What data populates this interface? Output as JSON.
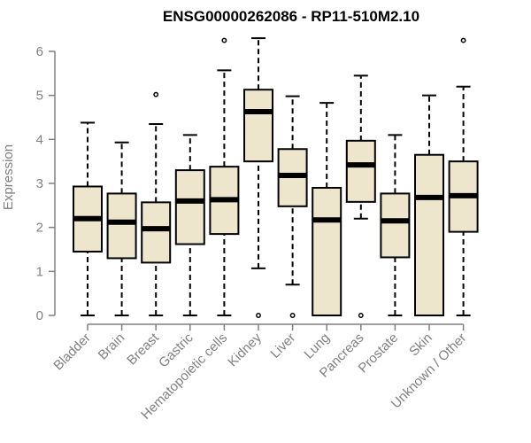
{
  "chart_data": {
    "type": "box",
    "title": "ENSG00000262086 - RP11-510M2.10",
    "xlabel": "",
    "ylabel": "Expression",
    "ylim": [
      0,
      6.3
    ],
    "yticks": [
      0,
      1,
      2,
      3,
      4,
      5,
      6
    ],
    "colors": {
      "box_fill": "#ede6cd",
      "stroke": "#000000",
      "axis": "#808080"
    },
    "categories": [
      "Bladder",
      "Brain",
      "Breast",
      "Gastric",
      "Hematopoietic cells",
      "Kidney",
      "Liver",
      "Lung",
      "Pancreas",
      "Prostate",
      "Skin",
      "Unknown / Other"
    ],
    "boxes": [
      {
        "category": "Bladder",
        "min": 0,
        "q1": 1.45,
        "median": 2.2,
        "q3": 2.93,
        "max": 4.38,
        "outliers": []
      },
      {
        "category": "Brain",
        "min": 0,
        "q1": 1.3,
        "median": 2.12,
        "q3": 2.77,
        "max": 3.93,
        "outliers": []
      },
      {
        "category": "Breast",
        "min": 0,
        "q1": 1.2,
        "median": 1.97,
        "q3": 2.57,
        "max": 4.35,
        "outliers": [
          5.02
        ]
      },
      {
        "category": "Gastric",
        "min": 0,
        "q1": 1.62,
        "median": 2.6,
        "q3": 3.3,
        "max": 4.1,
        "outliers": []
      },
      {
        "category": "Hematopoietic cells",
        "min": 0,
        "q1": 1.85,
        "median": 2.63,
        "q3": 3.38,
        "max": 5.57,
        "outliers": [
          6.25
        ]
      },
      {
        "category": "Kidney",
        "min": 1.07,
        "q1": 3.5,
        "median": 4.63,
        "q3": 5.13,
        "max": 6.3,
        "outliers": [
          0
        ]
      },
      {
        "category": "Liver",
        "min": 0.7,
        "q1": 2.48,
        "median": 3.18,
        "q3": 3.78,
        "max": 4.98,
        "outliers": [
          0
        ]
      },
      {
        "category": "Lung",
        "min": 0,
        "q1": 0,
        "median": 2.17,
        "q3": 2.9,
        "max": 4.83,
        "outliers": []
      },
      {
        "category": "Pancreas",
        "min": 2.2,
        "q1": 2.58,
        "median": 3.42,
        "q3": 3.97,
        "max": 5.45,
        "outliers": [
          0
        ]
      },
      {
        "category": "Prostate",
        "min": 0,
        "q1": 1.32,
        "median": 2.15,
        "q3": 2.77,
        "max": 4.1,
        "outliers": []
      },
      {
        "category": "Skin",
        "min": 0,
        "q1": 0,
        "median": 2.68,
        "q3": 3.65,
        "max": 5.0,
        "outliers": []
      },
      {
        "category": "Unknown / Other",
        "min": 0,
        "q1": 1.9,
        "median": 2.72,
        "q3": 3.5,
        "max": 5.2,
        "outliers": [
          6.25
        ]
      }
    ]
  }
}
